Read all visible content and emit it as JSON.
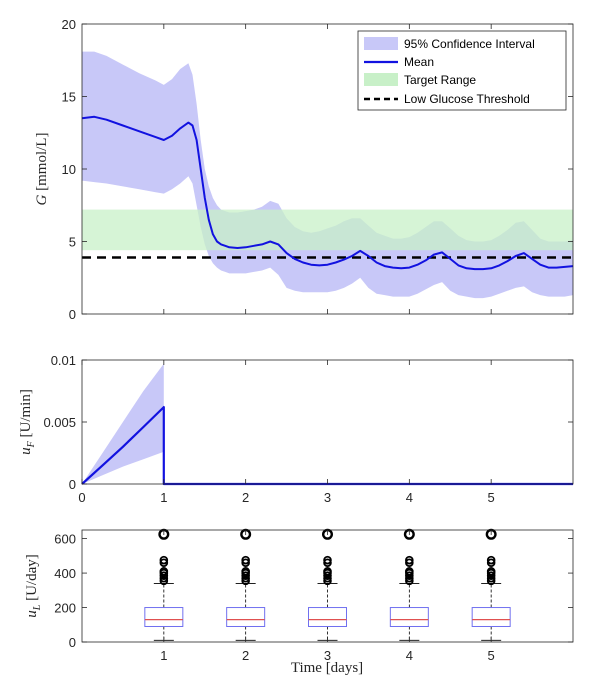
{
  "chart_data": [
    {
      "type": "line",
      "ylabel_main": "G",
      "ylabel_unit": "[mmol/L]",
      "xlim": [
        0,
        6
      ],
      "ylim": [
        0,
        20
      ],
      "yticks": [
        "0",
        "5",
        "10",
        "15",
        "20"
      ],
      "legend": {
        "placement": "top-right",
        "entries": [
          "95% Confidence Interval",
          "Mean",
          "Target Range",
          "Low Glucose Threshold"
        ]
      },
      "target_range": [
        4.4,
        7.2
      ],
      "low_threshold": 3.9,
      "series": [
        {
          "name": "Mean",
          "x": [
            0,
            0.15,
            0.3,
            0.5,
            0.7,
            0.9,
            1.0,
            1.1,
            1.2,
            1.3,
            1.35,
            1.4,
            1.45,
            1.5,
            1.55,
            1.6,
            1.65,
            1.7,
            1.75,
            1.8,
            1.9,
            2.0,
            2.1,
            2.2,
            2.3,
            2.4,
            2.5,
            2.6,
            2.7,
            2.8,
            2.9,
            3.0,
            3.1,
            3.2,
            3.3,
            3.4,
            3.5,
            3.6,
            3.7,
            3.8,
            3.9,
            4.0,
            4.1,
            4.2,
            4.3,
            4.4,
            4.5,
            4.6,
            4.7,
            4.8,
            4.9,
            5.0,
            5.1,
            5.2,
            5.3,
            5.4,
            5.5,
            5.6,
            5.7,
            5.8,
            5.9,
            6.0
          ],
          "y": [
            13.5,
            13.6,
            13.4,
            13.0,
            12.6,
            12.2,
            12.0,
            12.3,
            12.8,
            13.2,
            13.0,
            12.0,
            10.0,
            8.0,
            6.5,
            5.5,
            5.0,
            4.8,
            4.7,
            4.6,
            4.55,
            4.6,
            4.7,
            4.8,
            5.0,
            4.8,
            4.2,
            3.8,
            3.55,
            3.4,
            3.35,
            3.4,
            3.55,
            3.75,
            4.0,
            4.35,
            4.0,
            3.55,
            3.3,
            3.2,
            3.15,
            3.2,
            3.4,
            3.7,
            4.1,
            4.25,
            3.8,
            3.35,
            3.15,
            3.1,
            3.1,
            3.15,
            3.35,
            3.65,
            4.0,
            4.2,
            3.8,
            3.4,
            3.2,
            3.2,
            3.25,
            3.3
          ]
        },
        {
          "name": "95% Confidence Interval",
          "x": [
            0,
            0.15,
            0.3,
            0.5,
            0.7,
            0.9,
            1.0,
            1.1,
            1.2,
            1.3,
            1.35,
            1.4,
            1.45,
            1.5,
            1.55,
            1.6,
            1.65,
            1.7,
            1.75,
            1.8,
            1.9,
            2.0,
            2.1,
            2.2,
            2.3,
            2.4,
            2.5,
            2.6,
            2.7,
            2.8,
            2.9,
            3.0,
            3.1,
            3.2,
            3.3,
            3.4,
            3.5,
            3.6,
            3.7,
            3.8,
            3.9,
            4.0,
            4.1,
            4.2,
            4.3,
            4.4,
            4.5,
            4.6,
            4.7,
            4.8,
            4.9,
            5.0,
            5.1,
            5.2,
            5.3,
            5.4,
            5.5,
            5.6,
            5.7,
            5.8,
            5.9,
            6.0
          ],
          "upper": [
            18.1,
            18.1,
            17.8,
            17.2,
            16.6,
            16.1,
            15.8,
            16.2,
            16.9,
            17.3,
            16.5,
            14.5,
            12.0,
            10.0,
            8.8,
            8.0,
            7.5,
            7.2,
            7.1,
            7.0,
            7.0,
            7.1,
            7.2,
            7.4,
            7.8,
            7.6,
            6.6,
            6.0,
            5.7,
            5.6,
            5.7,
            5.9,
            6.1,
            6.4,
            6.6,
            6.6,
            6.1,
            5.6,
            5.4,
            5.2,
            5.2,
            5.3,
            5.6,
            6.0,
            6.4,
            6.4,
            5.9,
            5.4,
            5.1,
            5.0,
            5.0,
            5.1,
            5.4,
            5.8,
            6.3,
            6.4,
            5.8,
            5.2,
            5.0,
            5.0,
            5.0,
            5.1
          ],
          "lower": [
            9.2,
            9.1,
            9.0,
            8.8,
            8.6,
            8.4,
            8.3,
            8.6,
            9.0,
            9.5,
            9.0,
            7.5,
            6.0,
            4.8,
            4.0,
            3.5,
            3.2,
            3.0,
            2.9,
            2.8,
            2.8,
            2.8,
            2.9,
            3.0,
            3.2,
            2.7,
            1.8,
            1.6,
            1.5,
            1.5,
            1.5,
            1.5,
            1.6,
            1.8,
            2.1,
            2.5,
            1.8,
            1.4,
            1.3,
            1.2,
            1.2,
            1.2,
            1.4,
            1.7,
            2.0,
            2.2,
            1.6,
            1.3,
            1.2,
            1.1,
            1.1,
            1.2,
            1.4,
            1.6,
            1.8,
            1.9,
            1.5,
            1.3,
            1.2,
            1.2,
            1.2,
            1.3
          ]
        }
      ]
    },
    {
      "type": "line",
      "ylabel_main": "u",
      "ylabel_sub": "F",
      "ylabel_unit": "[U/min]",
      "xlim": [
        0,
        6
      ],
      "ylim": [
        0,
        0.01
      ],
      "xticks": [
        "0",
        "1",
        "2",
        "3",
        "4",
        "5"
      ],
      "yticks": [
        "0",
        "0.005",
        "0.01"
      ],
      "series": [
        {
          "name": "Mean",
          "x": [
            0,
            0.25,
            0.5,
            0.75,
            1.0,
            1.0,
            6.0
          ],
          "y": [
            0,
            0.0015,
            0.003,
            0.0046,
            0.0062,
            0,
            0
          ]
        },
        {
          "name": "95% Confidence Interval",
          "x": [
            0,
            0.25,
            0.5,
            0.75,
            1.0
          ],
          "upper": [
            0,
            0.0025,
            0.005,
            0.0075,
            0.0097
          ],
          "lower": [
            0,
            0.0007,
            0.0014,
            0.002,
            0.0026
          ]
        }
      ]
    },
    {
      "type": "box",
      "ylabel_main": "u",
      "ylabel_sub": "L",
      "ylabel_unit": "[U/day]",
      "xlabel": "Time [days]",
      "ylim": [
        0,
        650
      ],
      "categories": [
        "1",
        "2",
        "3",
        "4",
        "5"
      ],
      "yticks": [
        "0",
        "200",
        "400",
        "600"
      ],
      "boxes": [
        {
          "q1": 90,
          "median": 130,
          "q3": 200,
          "whisker_low": 10,
          "whisker_high": 340,
          "outliers": [
            355,
            370,
            385,
            400,
            410,
            460,
            475,
            625
          ]
        },
        {
          "q1": 90,
          "median": 130,
          "q3": 200,
          "whisker_low": 10,
          "whisker_high": 340,
          "outliers": [
            355,
            370,
            385,
            400,
            410,
            460,
            475,
            625
          ]
        },
        {
          "q1": 90,
          "median": 130,
          "q3": 200,
          "whisker_low": 10,
          "whisker_high": 340,
          "outliers": [
            355,
            370,
            385,
            400,
            410,
            460,
            475,
            625
          ]
        },
        {
          "q1": 90,
          "median": 130,
          "q3": 200,
          "whisker_low": 10,
          "whisker_high": 340,
          "outliers": [
            355,
            370,
            385,
            400,
            410,
            460,
            475,
            625
          ]
        },
        {
          "q1": 90,
          "median": 130,
          "q3": 200,
          "whisker_low": 10,
          "whisker_high": 340,
          "outliers": [
            355,
            370,
            385,
            400,
            410,
            460,
            475,
            625
          ]
        }
      ]
    }
  ],
  "colors": {
    "mean": "#1212e0",
    "ci": "#c8c8f8",
    "target": "#c8f0c8",
    "threshold": "#000000",
    "box": "#7070f0",
    "median": "#e05050"
  }
}
